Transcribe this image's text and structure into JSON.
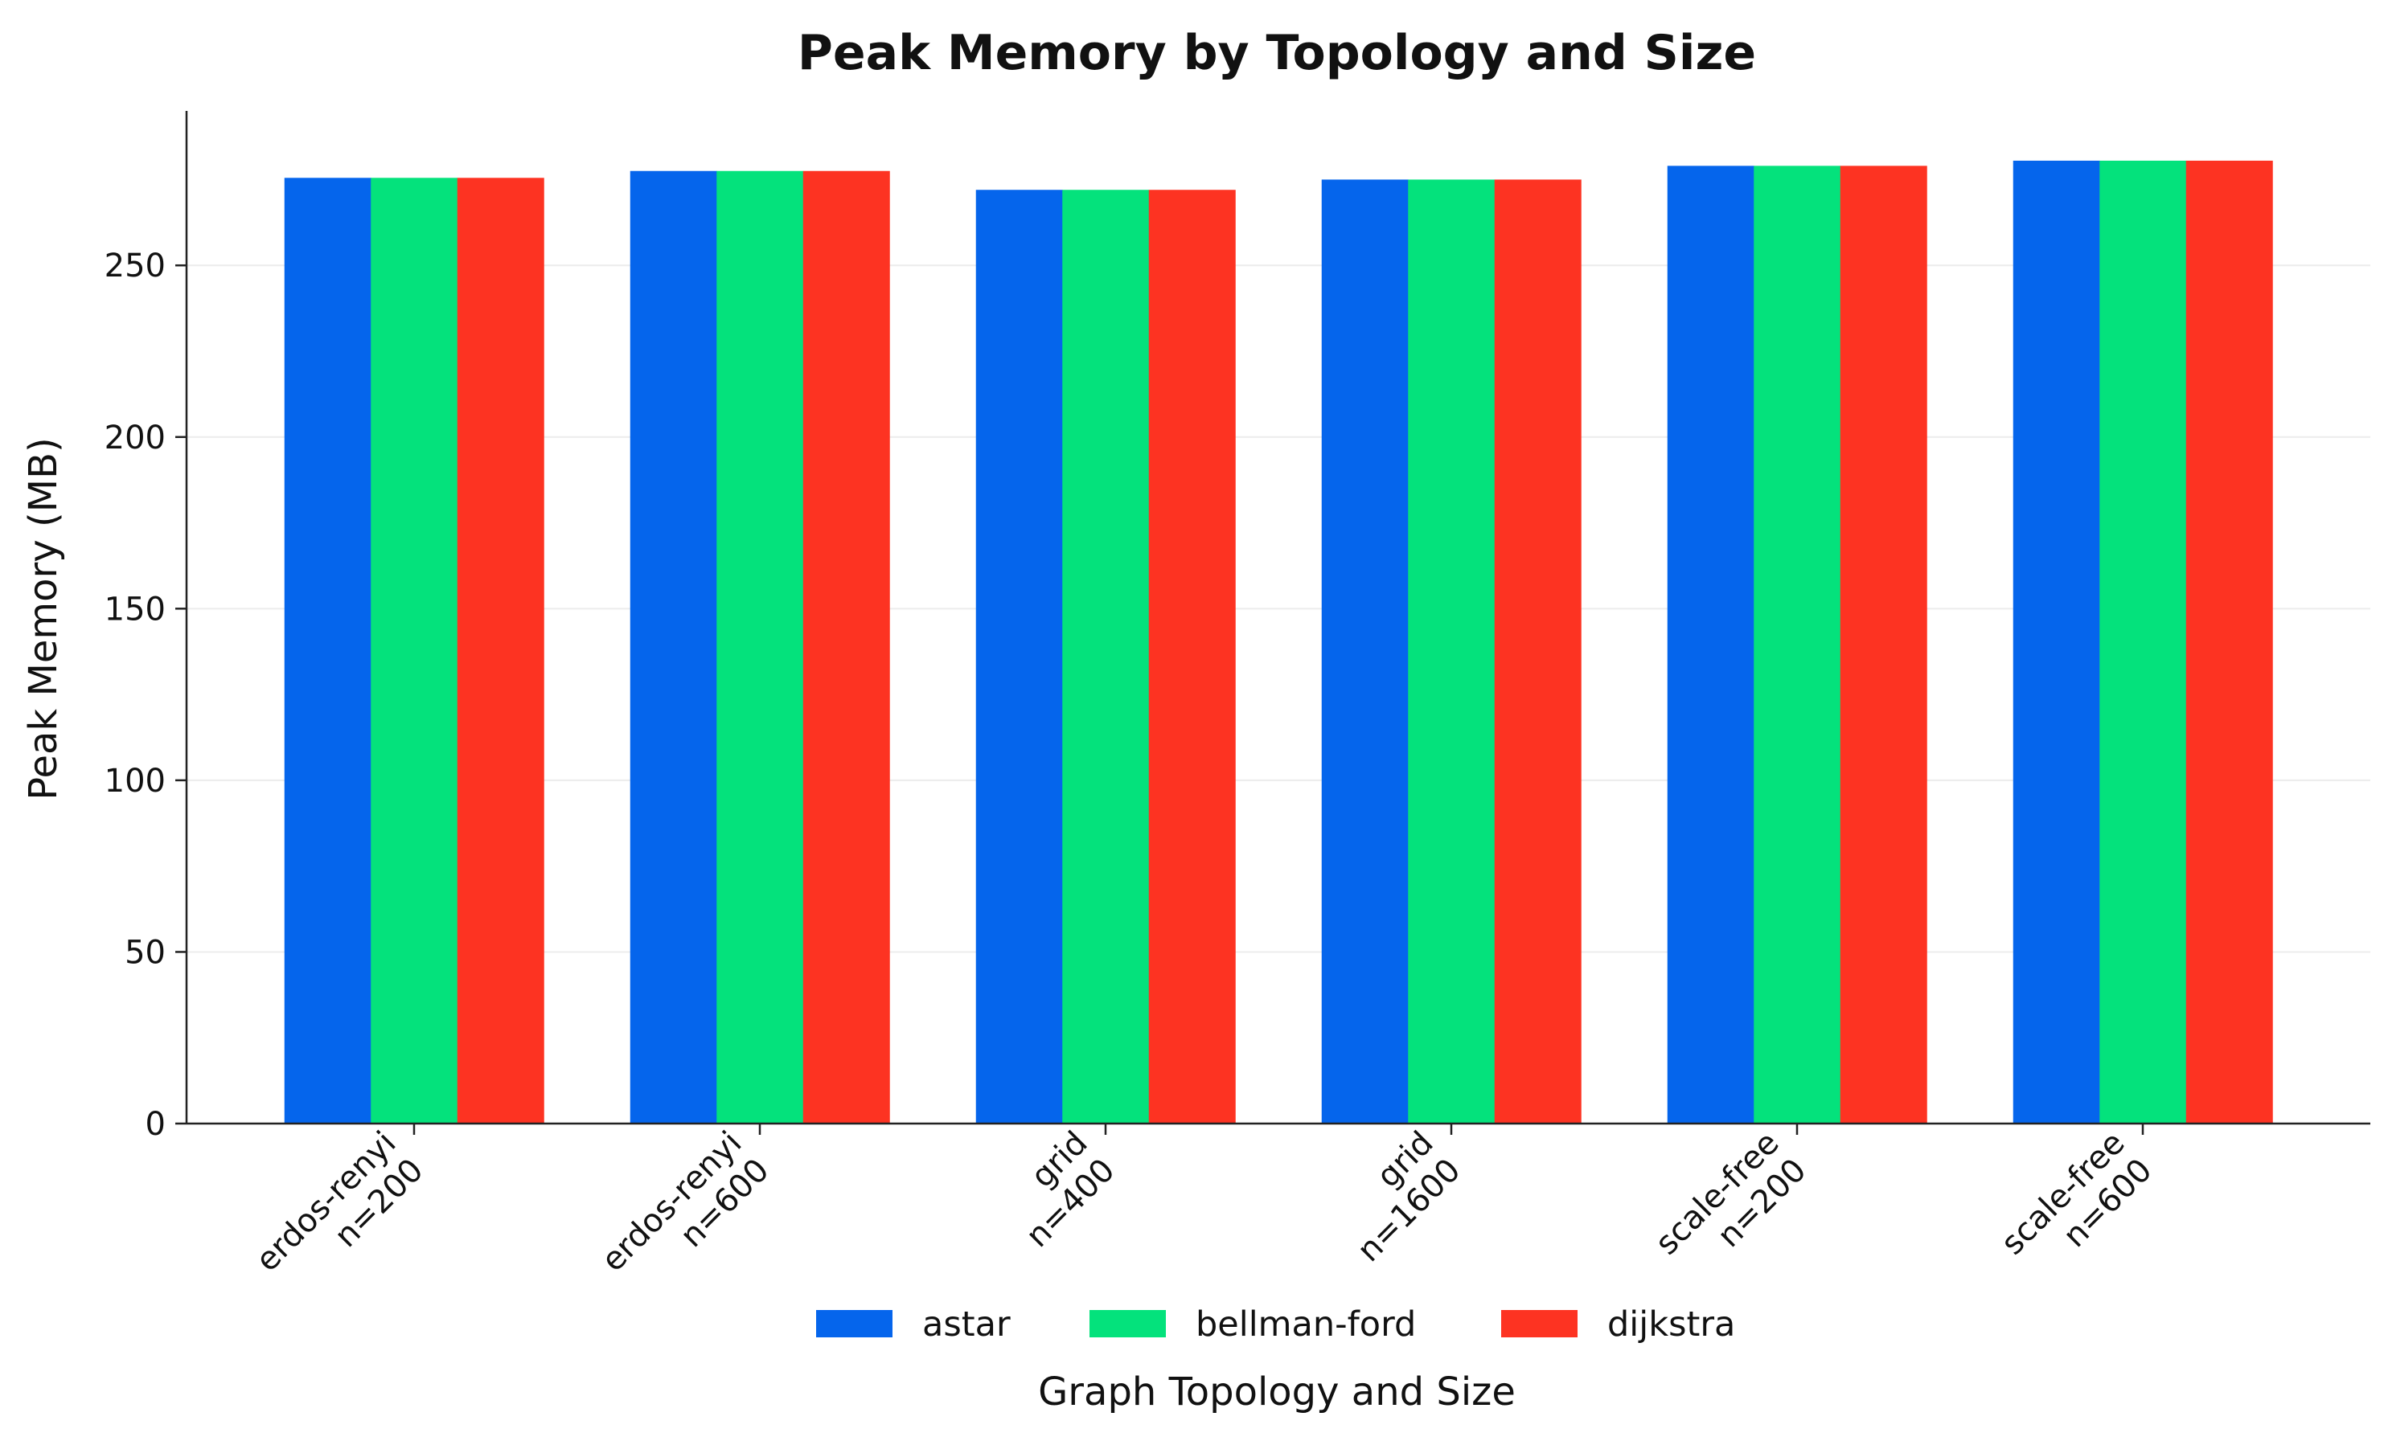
{
  "chart_data": {
    "type": "bar",
    "title": "Peak Memory by Topology and Size",
    "xlabel": "Graph Topology and Size",
    "ylabel": "Peak Memory (MB)",
    "categories": [
      [
        "erdos-renyi",
        "n=200"
      ],
      [
        "erdos-renyi",
        "n=600"
      ],
      [
        "grid",
        "n=400"
      ],
      [
        "grid",
        "n=1600"
      ],
      [
        "scale-free",
        "n=200"
      ],
      [
        "scale-free",
        "n=600"
      ]
    ],
    "series": [
      {
        "name": "astar",
        "color": "#0565ec",
        "values": [
          275.5,
          277.5,
          272,
          275,
          279,
          280.5
        ]
      },
      {
        "name": "bellman-ford",
        "color": "#04e27c",
        "values": [
          275.5,
          277.5,
          272,
          275,
          279,
          280.5
        ]
      },
      {
        "name": "dijkstra",
        "color": "#fd3322",
        "values": [
          275.5,
          277.5,
          272,
          275,
          279,
          280.5
        ]
      }
    ],
    "ylim": [
      0,
      295
    ],
    "yticks": [
      0,
      50,
      100,
      150,
      200,
      250
    ],
    "grid": true,
    "legend": "bottom-center"
  }
}
